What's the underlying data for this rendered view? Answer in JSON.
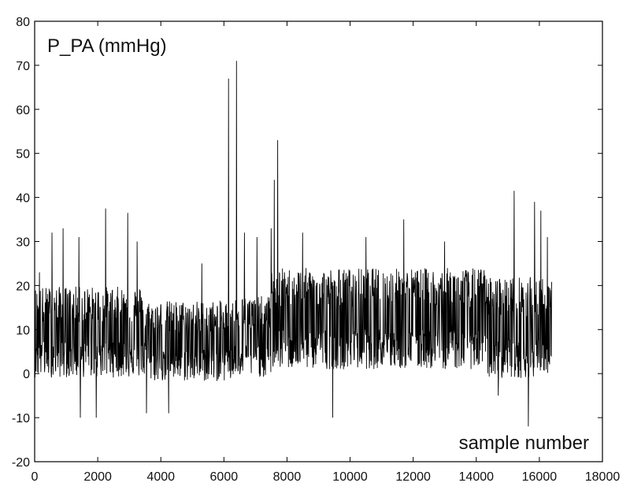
{
  "chart_data": {
    "type": "line",
    "title": "",
    "xlabel": "",
    "ylabel": "",
    "annotations": {
      "series_label": "P_PA (mmHg)",
      "x_axis_note": "sample number"
    },
    "xlim": [
      0,
      18000
    ],
    "ylim": [
      -20,
      80
    ],
    "xticks": [
      0,
      2000,
      4000,
      6000,
      8000,
      10000,
      12000,
      14000,
      16000,
      18000
    ],
    "yticks": [
      -20,
      -10,
      0,
      10,
      20,
      30,
      40,
      50,
      60,
      70,
      80
    ],
    "grid": false,
    "legend": "none",
    "line_color": "#000000",
    "series": [
      {
        "x_start": 0,
        "x_end": 16400,
        "baseline_segments": [
          {
            "x0": 0,
            "x1": 3500,
            "center": 9,
            "band": 9
          },
          {
            "x0": 3500,
            "x1": 6300,
            "center": 7,
            "band": 8
          },
          {
            "x0": 6300,
            "x1": 7500,
            "center": 8,
            "band": 8
          },
          {
            "x0": 7500,
            "x1": 14300,
            "center": 12,
            "band": 10
          },
          {
            "x0": 14300,
            "x1": 16400,
            "center": 10,
            "band": 10
          }
        ],
        "spikes": [
          {
            "x": 150,
            "y": 23
          },
          {
            "x": 550,
            "y": 32
          },
          {
            "x": 900,
            "y": 33
          },
          {
            "x": 1400,
            "y": 31
          },
          {
            "x": 1450,
            "y": -10
          },
          {
            "x": 1950,
            "y": -10
          },
          {
            "x": 2250,
            "y": 37.5
          },
          {
            "x": 2950,
            "y": 36.5
          },
          {
            "x": 3250,
            "y": 30
          },
          {
            "x": 3550,
            "y": -9
          },
          {
            "x": 4250,
            "y": -9
          },
          {
            "x": 5300,
            "y": 25
          },
          {
            "x": 6150,
            "y": 67
          },
          {
            "x": 6400,
            "y": 71
          },
          {
            "x": 6650,
            "y": 32
          },
          {
            "x": 7050,
            "y": 31
          },
          {
            "x": 7500,
            "y": 33
          },
          {
            "x": 7600,
            "y": 44
          },
          {
            "x": 7700,
            "y": 53
          },
          {
            "x": 8500,
            "y": 32
          },
          {
            "x": 9450,
            "y": -10
          },
          {
            "x": 10500,
            "y": 31
          },
          {
            "x": 11700,
            "y": 35
          },
          {
            "x": 13000,
            "y": 30
          },
          {
            "x": 14700,
            "y": -5
          },
          {
            "x": 15200,
            "y": 41.5
          },
          {
            "x": 15650,
            "y": -12
          },
          {
            "x": 15850,
            "y": 39
          },
          {
            "x": 16050,
            "y": 37
          },
          {
            "x": 16250,
            "y": 31
          }
        ]
      }
    ]
  }
}
